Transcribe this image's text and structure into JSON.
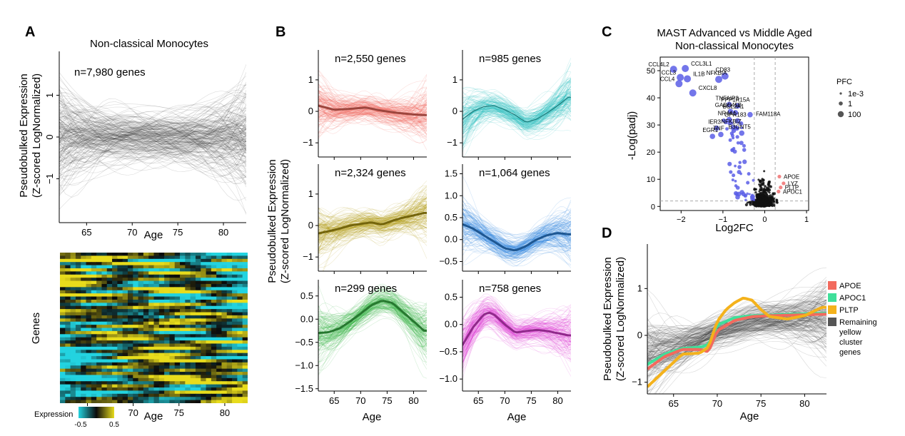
{
  "colors": {
    "gray": "#3a3a3a",
    "red": "#f26a5e",
    "teal": "#2bbdbd",
    "olive": "#b39b12",
    "blue": "#2e86e0",
    "green": "#3cb84a",
    "magenta": "#de3fd6",
    "heat_low": "#23d3e0",
    "heat_mid": "#0a0a0a",
    "heat_high": "#e8dc1c",
    "volcano_blue": "#5b5ee6",
    "volcano_red": "#f07070",
    "volcano_black": "#111111",
    "apoe": "#f26a5e",
    "apoc1": "#3fdf9a",
    "pltp": "#f4b21c",
    "remaining": "#555555"
  },
  "panels": {
    "A": {
      "label": "A",
      "title": "Non-classical Monocytes",
      "annotation": "n=7,980 genes",
      "ylabel_1": "Pseudobulked Expression",
      "ylabel_2": "(Z-scored LogNormalized)",
      "xlabel": "Age",
      "heat_ylabel": "Genes",
      "heat_xlabel": "Age",
      "colorbar_title": "Expression",
      "colorbar_min": "-0.5",
      "colorbar_max": "0.5"
    },
    "B": {
      "label": "B",
      "ylabel_1": "Pseudobulked Expression",
      "ylabel_2": "(Z-scored LogNormalized)",
      "xlabel_left": "Age",
      "xlabel_right": "Age"
    },
    "C": {
      "label": "C",
      "title_1": "MAST Advanced vs Middle Aged",
      "title_2": "Non-classical Monocytes",
      "xlabel": "Log2FC",
      "ylabel": "-Log(padj)",
      "legend_title": "PFC",
      "legend_items": [
        "1e-3",
        "1",
        "100"
      ]
    },
    "D": {
      "label": "D",
      "ylabel_1": "Pseudobulked Expression",
      "ylabel_2": "(Z-scored LogNormalized)",
      "xlabel": "Age",
      "legend": [
        "APOE",
        "APOC1",
        "PLTP",
        "Remaining yellow cluster genes"
      ]
    }
  },
  "chart_data": [
    {
      "id": "A-trajectories",
      "type": "line",
      "title": "Non-classical Monocytes",
      "annotation": "n=7,980 genes",
      "xlabel": "Age",
      "ylabel": "Pseudobulked Expression (Z-scored LogNormalized)",
      "xlim": [
        62,
        82.5
      ],
      "ylim": [
        -2.05,
        2.05
      ],
      "x_ticks": [
        65,
        70,
        75,
        80
      ],
      "y_ticks": [
        -1,
        0,
        1
      ],
      "series": [
        {
          "values_x": [
            62,
            64,
            66,
            68,
            70,
            72,
            74,
            76,
            78,
            80,
            82
          ],
          "values_y": [
            0,
            0,
            0,
            0,
            0,
            0,
            0,
            0,
            0,
            0,
            0
          ]
        }
      ]
    },
    {
      "id": "A-heatmap",
      "type": "heatmap",
      "xlabel": "Age",
      "ylabel": "Genes",
      "x_ticks": [
        65,
        70,
        75,
        80
      ],
      "color_scale": {
        "title": "Expression",
        "min": -0.5,
        "max": 0.5
      }
    },
    {
      "id": "B1",
      "type": "line",
      "annotation": "n=2,550 genes",
      "xlim": [
        62,
        82.5
      ],
      "ylim": [
        -1.45,
        1.95
      ],
      "y_ticks": [
        -1,
        0,
        1
      ],
      "color": "#f26a5e",
      "series": [
        {
          "x": [
            62,
            65,
            68,
            71,
            74,
            77,
            80,
            82
          ],
          "y": [
            0.18,
            0.05,
            0.08,
            0.12,
            0.02,
            -0.05,
            -0.1,
            -0.12
          ]
        }
      ]
    },
    {
      "id": "B2",
      "type": "line",
      "annotation": "n=985 genes",
      "xlim": [
        62,
        82.5
      ],
      "ylim": [
        -1.45,
        1.95
      ],
      "y_ticks": [
        -1,
        0,
        1
      ],
      "color": "#2bbdbd",
      "series": [
        {
          "x": [
            62,
            64,
            66,
            68,
            70,
            72,
            74,
            76,
            78,
            80,
            82
          ],
          "y": [
            -0.25,
            0.0,
            0.15,
            0.18,
            0.05,
            -0.12,
            -0.35,
            -0.25,
            -0.05,
            0.18,
            0.45
          ]
        }
      ]
    },
    {
      "id": "B3",
      "type": "line",
      "annotation": "n=2,324 genes",
      "xlim": [
        62,
        82.5
      ],
      "ylim": [
        -1.45,
        1.95
      ],
      "y_ticks": [
        -1,
        0,
        1
      ],
      "color": "#b39b12",
      "series": [
        {
          "x": [
            62,
            64,
            66,
            68,
            70,
            72,
            74,
            76,
            78,
            80,
            82
          ],
          "y": [
            -0.25,
            -0.18,
            -0.1,
            0.0,
            0.05,
            0.1,
            0.03,
            0.15,
            0.25,
            0.32,
            0.4
          ]
        }
      ]
    },
    {
      "id": "B4",
      "type": "line",
      "annotation": "n=1,064 genes",
      "xlim": [
        62,
        82.5
      ],
      "ylim": [
        -0.72,
        1.72
      ],
      "y_ticks": [
        -0.5,
        0.0,
        0.5,
        1.0,
        1.5
      ],
      "color": "#2e86e0",
      "series": [
        {
          "x": [
            62,
            64,
            66,
            68,
            70,
            72,
            74,
            76,
            78,
            80,
            82
          ],
          "y": [
            0.35,
            0.25,
            0.1,
            -0.05,
            -0.2,
            -0.25,
            -0.15,
            0.0,
            0.1,
            0.15,
            0.12
          ]
        }
      ]
    },
    {
      "id": "B5",
      "type": "line",
      "annotation": "n=299 genes",
      "xlim": [
        62,
        82.5
      ],
      "ylim": [
        -1.55,
        0.85
      ],
      "y_ticks": [
        -1.5,
        -1.0,
        -0.5,
        0.0,
        0.5
      ],
      "color": "#3cb84a",
      "series": [
        {
          "x": [
            62,
            64,
            66,
            68,
            70,
            72,
            74,
            76,
            78,
            80,
            82
          ],
          "y": [
            -0.3,
            -0.28,
            -0.2,
            -0.05,
            0.12,
            0.3,
            0.4,
            0.35,
            0.15,
            -0.05,
            -0.25
          ]
        }
      ]
    },
    {
      "id": "B6",
      "type": "line",
      "annotation": "n=758 genes",
      "xlim": [
        62,
        82.5
      ],
      "ylim": [
        -1.22,
        0.82
      ],
      "y_ticks": [
        -1.0,
        -0.5,
        0.0,
        0.5
      ],
      "color": "#de3fd6",
      "series": [
        {
          "x": [
            62,
            64,
            66,
            67,
            68,
            70,
            72,
            74,
            76,
            78,
            80,
            82
          ],
          "y": [
            -0.38,
            -0.05,
            0.18,
            0.22,
            0.18,
            0.0,
            -0.15,
            -0.12,
            -0.1,
            -0.12,
            -0.16,
            -0.2
          ]
        }
      ]
    },
    {
      "id": "C",
      "type": "scatter",
      "title": "MAST Advanced vs Middle Aged Non-classical Monocytes",
      "xlabel": "Log2FC",
      "ylabel": "-Log(padj)",
      "xlim": [
        -2.5,
        1.05
      ],
      "ylim": [
        -1.5,
        55
      ],
      "x_ticks": [
        -2,
        -1,
        0,
        1
      ],
      "y_ticks": [
        0,
        10,
        20,
        30,
        40,
        50
      ],
      "legend_title": "PFC",
      "labeled_points": [
        {
          "gene": "CCL4L2",
          "x": -2.18,
          "y": 50.5,
          "side": "down"
        },
        {
          "gene": "CCL3L1",
          "x": -1.9,
          "y": 50.8,
          "side": "down"
        },
        {
          "gene": "CCL3",
          "x": -2.02,
          "y": 47.5,
          "side": "down"
        },
        {
          "gene": "IL1B",
          "x": -1.85,
          "y": 47.0,
          "side": "down"
        },
        {
          "gene": "CCL4",
          "x": -2.05,
          "y": 45.2,
          "side": "down"
        },
        {
          "gene": "CXCL8",
          "x": -1.72,
          "y": 41.8,
          "side": "down"
        },
        {
          "gene": "CD83",
          "x": -0.95,
          "y": 48.0,
          "side": "down"
        },
        {
          "gene": "NFKBIA",
          "x": -1.1,
          "y": 46.8,
          "side": "down"
        },
        {
          "gene": "TNFAIP3",
          "x": -0.85,
          "y": 37.5,
          "side": "down"
        },
        {
          "gene": "PPP1R15A",
          "x": -0.65,
          "y": 37.0,
          "side": "down"
        },
        {
          "gene": "GADD45B",
          "x": -0.82,
          "y": 35.0,
          "side": "down"
        },
        {
          "gene": "BCL2A1",
          "x": -0.7,
          "y": 34.5,
          "side": "down"
        },
        {
          "gene": "FAM118A",
          "x": -0.35,
          "y": 33.8,
          "side": "down"
        },
        {
          "gene": "NR4A1",
          "x": -0.85,
          "y": 32.0,
          "side": "down"
        },
        {
          "gene": "GPR183",
          "x": -0.65,
          "y": 31.5,
          "side": "down"
        },
        {
          "gene": "IER3",
          "x": -1.15,
          "y": 28.8,
          "side": "down"
        },
        {
          "gene": "NFKBIZ",
          "x": -0.75,
          "y": 29.0,
          "side": "down"
        },
        {
          "gene": "TNF",
          "x": -1.05,
          "y": 26.5,
          "side": "down"
        },
        {
          "gene": "B3GNT5",
          "x": -0.55,
          "y": 27.0,
          "side": "down"
        },
        {
          "gene": "EGR1",
          "x": -1.25,
          "y": 25.8,
          "side": "down"
        },
        {
          "gene": "APOE",
          "x": 0.35,
          "y": 11.0,
          "side": "up"
        },
        {
          "gene": "LYZ",
          "x": 0.45,
          "y": 8.5,
          "side": "up"
        },
        {
          "gene": "PLTP",
          "x": 0.38,
          "y": 7.0,
          "side": "up"
        },
        {
          "gene": "APOC1",
          "x": 0.33,
          "y": 5.5,
          "side": "up"
        }
      ]
    },
    {
      "id": "D",
      "type": "line",
      "xlabel": "Age",
      "ylabel": "Pseudobulked Expression (Z-scored LogNormalized)",
      "xlim": [
        62,
        82.5
      ],
      "ylim": [
        -1.25,
        1.95
      ],
      "x_ticks": [
        65,
        70,
        75,
        80
      ],
      "y_ticks": [
        -1,
        0,
        1
      ],
      "series": [
        {
          "name": "APOE",
          "x": [
            62,
            64,
            66,
            68,
            69,
            70,
            72,
            74,
            76,
            78,
            80,
            82
          ],
          "y": [
            -0.72,
            -0.45,
            -0.3,
            -0.3,
            -0.35,
            0.1,
            0.32,
            0.4,
            0.42,
            0.43,
            0.44,
            0.45
          ]
        },
        {
          "name": "APOC1",
          "x": [
            62,
            64,
            66,
            68,
            69,
            70,
            72,
            74,
            76,
            78,
            80,
            82
          ],
          "y": [
            -0.62,
            -0.4,
            -0.28,
            -0.25,
            -0.2,
            0.22,
            0.38,
            0.42,
            0.43,
            0.45,
            0.46,
            0.47
          ]
        },
        {
          "name": "PLTP",
          "x": [
            62,
            64,
            66,
            68,
            69,
            70,
            71,
            72,
            73,
            74,
            75,
            76,
            78,
            80,
            82
          ],
          "y": [
            -1.1,
            -0.75,
            -0.4,
            -0.38,
            -0.25,
            0.3,
            0.55,
            0.7,
            0.8,
            0.75,
            0.55,
            0.4,
            0.35,
            0.42,
            0.6
          ]
        },
        {
          "name": "Remaining yellow cluster genes",
          "x": [
            62,
            66,
            70,
            74,
            78,
            82
          ],
          "y": [
            -0.4,
            -0.2,
            0.1,
            0.3,
            0.35,
            0.4
          ]
        }
      ]
    }
  ]
}
